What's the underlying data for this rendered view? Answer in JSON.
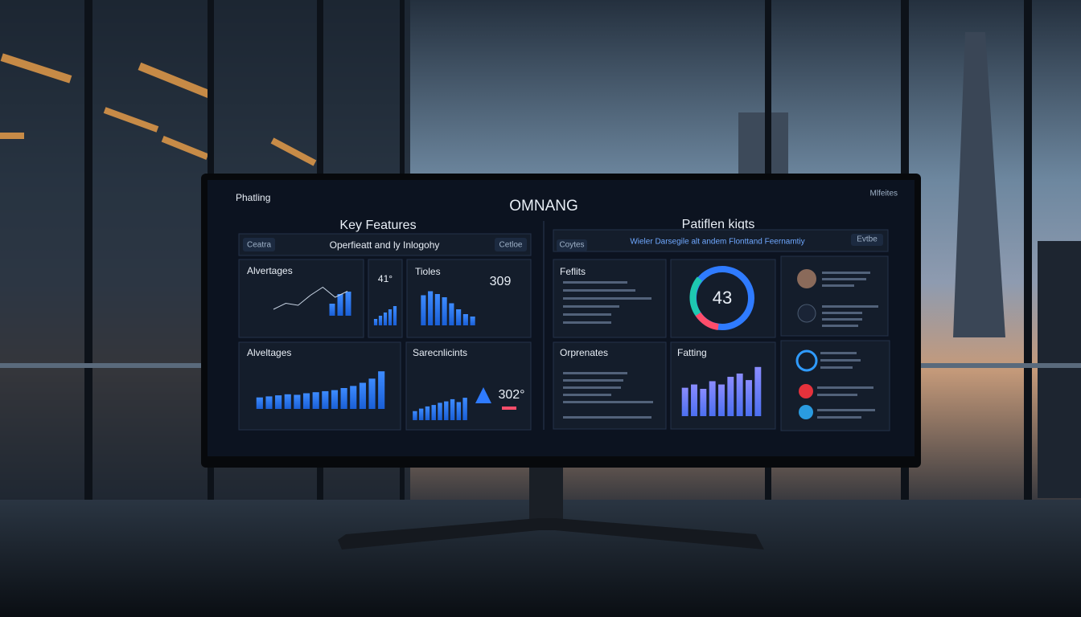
{
  "header": {
    "logo": "Phatling",
    "title": "OMNANG",
    "badge": "Mlfeites"
  },
  "left": {
    "heading": "Key Features",
    "toolbar": {
      "button_left": "Ceatra",
      "text": "Operfieatt and ly Inlogohy",
      "button_right": "Cetloe"
    },
    "panels": [
      {
        "title": "Alvertages",
        "line": [
          20,
          35,
          30,
          55,
          75,
          50,
          65
        ],
        "bars": [
          25,
          45,
          50
        ]
      },
      {
        "title": "41°",
        "bars": [
          20,
          30,
          40,
          50,
          60
        ]
      },
      {
        "title": "Tioles",
        "value": "309",
        "bars": [
          75,
          85,
          78,
          70,
          55,
          40,
          28,
          22
        ]
      },
      {
        "title": "Alveltages",
        "bars": [
          22,
          24,
          26,
          28,
          27,
          30,
          32,
          34,
          36,
          40,
          44,
          50,
          58,
          72
        ]
      },
      {
        "title": "Sarecnlicints",
        "value": "302°",
        "bars": [
          25,
          32,
          38,
          42,
          48,
          52,
          58,
          50,
          62
        ]
      }
    ]
  },
  "right": {
    "heading": "Patiflen kigts",
    "toolbar": {
      "button_left": "Coytes",
      "text": "Wieler Darsegile alt andem Flonttand Feernamtiy",
      "button_right": "Evtbe"
    },
    "panels": [
      {
        "title": "Feflits"
      },
      {
        "title": "43"
      },
      {
        "title": "Orprenates"
      },
      {
        "title": "Fatting",
        "bars": [
          52,
          58,
          50,
          64,
          58,
          72,
          78,
          66,
          90
        ]
      }
    ]
  }
}
